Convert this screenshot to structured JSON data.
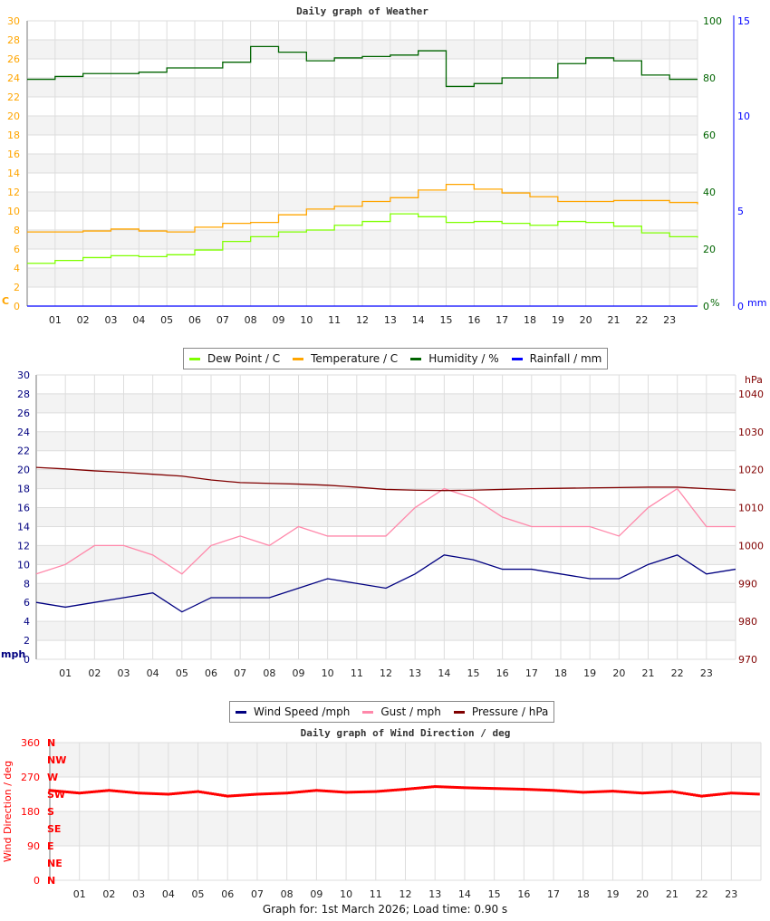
{
  "chart_data": [
    {
      "type": "line",
      "title": "Daily graph of Weather",
      "x_ticks": [
        "01",
        "02",
        "03",
        "04",
        "05",
        "06",
        "07",
        "08",
        "09",
        "10",
        "11",
        "12",
        "13",
        "14",
        "15",
        "16",
        "17",
        "18",
        "19",
        "20",
        "21",
        "22",
        "23"
      ],
      "xlim": [
        0,
        24
      ],
      "grid": true,
      "axes": {
        "left": {
          "label": "C",
          "range": [
            0,
            30
          ],
          "color": "#ffa500"
        },
        "right1": {
          "label": "%",
          "range": [
            0,
            100
          ],
          "color": "#006400"
        },
        "right2": {
          "label": "mm",
          "range": [
            0,
            15
          ],
          "color": "#0000ff"
        }
      },
      "legend": {
        "placement": "bottom"
      },
      "x": [
        0,
        1,
        2,
        3,
        4,
        5,
        6,
        7,
        8,
        9,
        10,
        11,
        12,
        13,
        14,
        15,
        16,
        17,
        18,
        19,
        20,
        21,
        22,
        23,
        24
      ],
      "series": [
        {
          "name": "Dew Point / C",
          "axis": "left",
          "color": "#7fff00",
          "values": [
            4.5,
            4.8,
            5.1,
            5.3,
            5.2,
            5.4,
            5.9,
            6.8,
            7.3,
            7.8,
            8.0,
            8.5,
            8.9,
            9.7,
            9.4,
            8.8,
            8.9,
            8.7,
            8.5,
            8.9,
            8.8,
            8.4,
            7.7,
            7.3,
            7.2
          ]
        },
        {
          "name": "Temperature / C",
          "axis": "left",
          "color": "#ffa500",
          "values": [
            7.8,
            7.8,
            7.9,
            8.1,
            7.9,
            7.8,
            8.3,
            8.7,
            8.8,
            9.6,
            10.2,
            10.5,
            11.0,
            11.4,
            12.2,
            12.8,
            12.3,
            11.9,
            11.5,
            11.0,
            11.0,
            11.1,
            11.1,
            10.9,
            10.7
          ]
        },
        {
          "name": "Humidity / %",
          "axis": "right1",
          "color": "#006400",
          "values": [
            79.5,
            80.5,
            81.5,
            81.5,
            82,
            83.5,
            83.5,
            85.5,
            91,
            89,
            86,
            87,
            87.5,
            88,
            89.5,
            77,
            78,
            80,
            80,
            85,
            87,
            86,
            81,
            79.5,
            79.5
          ]
        },
        {
          "name": "Rainfall / mm",
          "axis": "right2",
          "color": "#0000ff",
          "values": [
            0,
            0,
            0,
            0,
            0,
            0,
            0,
            0,
            0,
            0,
            0,
            0,
            0,
            0,
            0,
            0,
            0,
            0,
            0,
            0,
            0,
            0,
            0,
            0,
            0
          ]
        }
      ]
    },
    {
      "type": "line",
      "title": "",
      "x_ticks": [
        "01",
        "02",
        "03",
        "04",
        "05",
        "06",
        "07",
        "08",
        "09",
        "10",
        "11",
        "12",
        "13",
        "14",
        "15",
        "16",
        "17",
        "18",
        "19",
        "20",
        "21",
        "22",
        "23"
      ],
      "xlim": [
        0,
        24
      ],
      "grid": true,
      "axes": {
        "left": {
          "label": "mph",
          "range": [
            0,
            30
          ],
          "color": "#000080"
        },
        "right1": {
          "label": "hPa",
          "range": [
            970,
            1045
          ],
          "ticks": [
            970,
            980,
            990,
            1000,
            1010,
            1020,
            1030,
            1040
          ],
          "color": "#800000"
        }
      },
      "legend": {
        "placement": "bottom"
      },
      "x": [
        0,
        1,
        2,
        3,
        4,
        5,
        6,
        7,
        8,
        9,
        10,
        11,
        12,
        13,
        14,
        15,
        16,
        17,
        18,
        19,
        20,
        21,
        22,
        23,
        24
      ],
      "series": [
        {
          "name": "Wind Speed /mph",
          "axis": "left",
          "color": "#000080",
          "values": [
            6,
            5.5,
            6,
            6.5,
            7,
            5,
            6.5,
            6.5,
            6.5,
            7.5,
            8.5,
            8,
            7.5,
            9,
            11,
            10.5,
            9.5,
            9.5,
            9,
            8.5,
            8.5,
            10,
            11,
            9,
            9.5
          ]
        },
        {
          "name": "Gust / mph",
          "axis": "left",
          "color": "#ff88aa",
          "values": [
            9,
            10,
            12,
            12,
            11,
            9,
            12,
            13,
            12,
            14,
            13,
            13,
            13,
            16,
            18,
            17,
            15,
            14,
            14,
            14,
            13,
            16,
            18,
            14,
            14
          ]
        },
        {
          "name": "Pressure / hPa",
          "axis": "right1",
          "color": "#800000",
          "values": [
            1020.6,
            1020.2,
            1019.7,
            1019.3,
            1018.8,
            1018.3,
            1017.3,
            1016.6,
            1016.4,
            1016.2,
            1015.9,
            1015.4,
            1014.8,
            1014.6,
            1014.5,
            1014.6,
            1014.8,
            1015.0,
            1015.1,
            1015.2,
            1015.3,
            1015.4,
            1015.4,
            1015.0,
            1014.6
          ]
        }
      ]
    },
    {
      "type": "scatter",
      "title": "Daily graph of Wind Direction / deg",
      "ylabel": "Wind Direction / deg",
      "x_ticks": [
        "01",
        "02",
        "03",
        "04",
        "05",
        "06",
        "07",
        "08",
        "09",
        "10",
        "11",
        "12",
        "13",
        "14",
        "15",
        "16",
        "17",
        "18",
        "19",
        "20",
        "21",
        "22",
        "23"
      ],
      "xlim": [
        0,
        24
      ],
      "ylim": [
        0,
        360
      ],
      "y_ticks": [
        0,
        90,
        180,
        270,
        360
      ],
      "grid": true,
      "compass": [
        "N",
        "NE",
        "E",
        "SE",
        "S",
        "SW",
        "W",
        "NW",
        "N"
      ],
      "color": "#ff0000",
      "x": [
        0,
        1,
        2,
        3,
        4,
        5,
        6,
        7,
        8,
        9,
        10,
        11,
        12,
        13,
        14,
        15,
        16,
        17,
        18,
        19,
        20,
        21,
        22,
        23,
        24
      ],
      "values": [
        235,
        228,
        235,
        228,
        225,
        232,
        220,
        225,
        228,
        235,
        230,
        232,
        238,
        245,
        242,
        240,
        238,
        235,
        230,
        233,
        228,
        232,
        220,
        228,
        225
      ]
    }
  ],
  "footer": "Graph for: 1st March 2026; Load time: 0.90 s"
}
